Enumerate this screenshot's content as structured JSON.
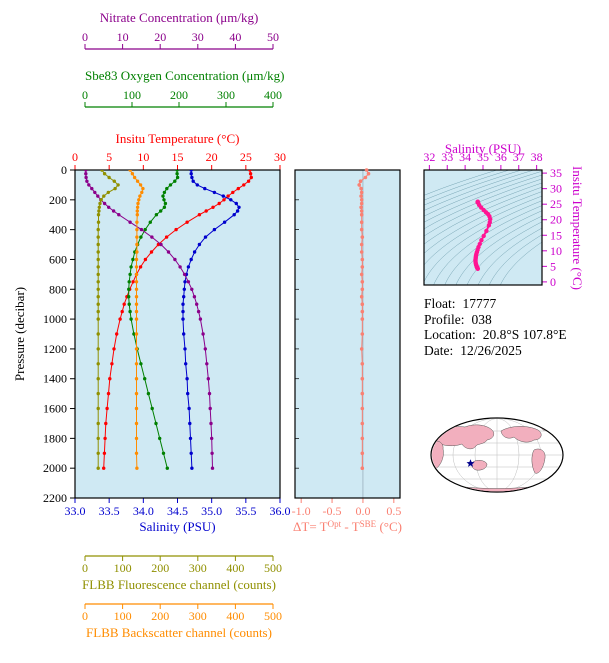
{
  "plot_background": "#cfe9f3",
  "axes": {
    "nitrate": {
      "title": "Nitrate Concentration (μm/kg)",
      "color": "#8b008b",
      "min": 0,
      "max": 50,
      "ticks": [
        "0",
        "10",
        "20",
        "30",
        "40",
        "50"
      ]
    },
    "oxygen": {
      "title": "Sbe83 Oxygen Concentration (μm/kg)",
      "color": "#008000",
      "min": 0,
      "max": 400,
      "ticks": [
        "0",
        "100",
        "200",
        "300",
        "400"
      ]
    },
    "temperature": {
      "title": "Insitu Temperature (°C)",
      "color": "#ff0000",
      "min": 0,
      "max": 30,
      "ticks": [
        "0",
        "5",
        "10",
        "15",
        "20",
        "25",
        "30"
      ]
    },
    "salinity": {
      "title": "Salinity (PSU)",
      "color": "#0000cd",
      "min": 33,
      "max": 36,
      "ticks": [
        "33.0",
        "33.5",
        "34.0",
        "34.5",
        "35.0",
        "35.5",
        "36.0"
      ]
    },
    "pressure": {
      "title": "Pressure (decibar)",
      "color": "#000000",
      "min": 0,
      "max": 2200,
      "ticks": [
        "0",
        "200",
        "400",
        "600",
        "800",
        "1000",
        "1200",
        "1400",
        "1600",
        "1800",
        "2000",
        "2200"
      ]
    },
    "fluorescence": {
      "title": "FLBB Fluorescence channel (counts)",
      "color": "#909000",
      "min": 0,
      "max": 500,
      "ticks": [
        "0",
        "100",
        "200",
        "300",
        "400",
        "500"
      ]
    },
    "backscatter": {
      "title": "FLBB Backscatter channel (counts)",
      "color": "#ff8c00",
      "min": 0,
      "max": 500,
      "ticks": [
        "0",
        "100",
        "200",
        "300",
        "400",
        "500"
      ]
    },
    "delta_t": {
      "title_prefix": "ΔT= T",
      "title_sup1": "Opt",
      "title_mid": " - T",
      "title_sup2": "SBE",
      "title_suffix": " (°C)",
      "color": "#fa8072",
      "min": -1.1,
      "max": 0.6,
      "ticks": [
        "-1.0",
        "-0.5",
        "0.0",
        "0.5"
      ]
    },
    "ts_salinity": {
      "title": "Salinity (PSU)",
      "color": "#cc00cc",
      "min": 31.7,
      "max": 38.3,
      "ticks": [
        "32",
        "33",
        "34",
        "35",
        "36",
        "37",
        "38"
      ]
    },
    "ts_temperature": {
      "title": "Insitu Temperature (°C)",
      "color": "#cc00cc",
      "min": 0,
      "max": 35,
      "ticks": [
        "0",
        "5",
        "10",
        "15",
        "20",
        "25",
        "30",
        "35"
      ]
    }
  },
  "info": {
    "rows": [
      {
        "label": "Float:",
        "value": "17777"
      },
      {
        "label": "Profile:",
        "value": "038"
      },
      {
        "label": "Location:",
        "value": "20.8°S  107.8°E"
      },
      {
        "label": "Date:",
        "value": "12/26/2025"
      }
    ]
  },
  "map": {
    "land_color": "#f2afbe",
    "marker_color": "#00008b"
  },
  "chart_data": [
    {
      "id": "profiles",
      "type": "line",
      "title": "Vertical profiles vs pressure",
      "ylabel": "Pressure (decibar)",
      "ylim": [
        0,
        2200
      ],
      "y_inverted": true,
      "grid": false,
      "pressure_levels": [
        0,
        25,
        50,
        75,
        100,
        125,
        150,
        175,
        200,
        225,
        250,
        275,
        300,
        350,
        400,
        450,
        500,
        550,
        600,
        650,
        700,
        750,
        800,
        850,
        900,
        950,
        1000,
        1100,
        1200,
        1300,
        1400,
        1500,
        1600,
        1700,
        1800,
        1900,
        2000
      ],
      "series": [
        {
          "id": "temperature",
          "name": "Insitu Temperature (°C)",
          "color": "#ff0000",
          "span": "box",
          "xlim": [
            0,
            30
          ],
          "values": [
            25.6,
            25.7,
            25.8,
            25.4,
            24.7,
            23.9,
            23.1,
            22.4,
            21.8,
            21.1,
            20.2,
            19.2,
            18.2,
            16.4,
            14.8,
            13.4,
            12.2,
            11.2,
            10.3,
            9.6,
            9.0,
            8.5,
            8.0,
            7.6,
            7.2,
            6.9,
            6.6,
            6.1,
            5.7,
            5.4,
            5.1,
            4.9,
            4.7,
            4.5,
            4.4,
            4.3,
            4.2
          ]
        },
        {
          "id": "salinity",
          "name": "Salinity (PSU)",
          "color": "#0000cd",
          "span": "box",
          "xlim": [
            33,
            36
          ],
          "values": [
            34.7,
            34.7,
            34.71,
            34.73,
            34.79,
            34.9,
            35.04,
            35.17,
            35.28,
            35.36,
            35.4,
            35.38,
            35.33,
            35.19,
            35.04,
            34.91,
            34.82,
            34.75,
            34.7,
            34.66,
            34.63,
            34.61,
            34.6,
            34.59,
            34.58,
            34.58,
            34.58,
            34.59,
            34.61,
            34.62,
            34.64,
            34.65,
            34.67,
            34.68,
            34.69,
            34.7,
            34.71
          ]
        },
        {
          "id": "oxygen",
          "name": "Sbe83 Oxygen Concentration (μm/kg)",
          "color": "#008000",
          "span": "offset",
          "xlim": [
            0,
            400
          ],
          "values": [
            196,
            196,
            197,
            191,
            182,
            174,
            169,
            166,
            168,
            171,
            169,
            161,
            152,
            139,
            128,
            119,
            112,
            106,
            102,
            98,
            96,
            94,
            93,
            93,
            94,
            96,
            98,
            104,
            111,
            119,
            127,
            135,
            143,
            151,
            159,
            167,
            175
          ]
        },
        {
          "id": "nitrate",
          "name": "Nitrate Concentration (μm/kg)",
          "color": "#8b008b",
          "span": "offset",
          "xlim": [
            0,
            50
          ],
          "values": [
            0.2,
            0.2,
            0.3,
            0.5,
            1.0,
            1.8,
            2.6,
            3.4,
            4.2,
            5.2,
            6.3,
            7.6,
            9.0,
            12.0,
            15.0,
            17.8,
            20.2,
            22.2,
            23.9,
            25.3,
            26.5,
            27.5,
            28.4,
            29.1,
            29.7,
            30.2,
            30.7,
            31.4,
            32.0,
            32.4,
            32.8,
            33.1,
            33.3,
            33.5,
            33.7,
            33.8,
            33.9
          ]
        },
        {
          "id": "fluorescence",
          "name": "FLBB Fluorescence channel (counts)",
          "color": "#909000",
          "span": "offset",
          "xlim": [
            0,
            500
          ],
          "values": [
            45,
            52,
            64,
            78,
            88,
            80,
            62,
            50,
            43,
            40,
            38,
            37,
            36,
            36,
            35,
            35,
            35,
            35,
            35,
            35,
            35,
            35,
            35,
            35,
            35,
            35,
            35,
            35,
            35,
            35,
            35,
            35,
            35,
            35,
            35,
            35,
            35
          ]
        },
        {
          "id": "backscatter",
          "name": "FLBB Backscatter channel (counts)",
          "color": "#ff8c00",
          "span": "offset",
          "xlim": [
            0,
            500
          ],
          "values": [
            120,
            126,
            132,
            140,
            148,
            154,
            151,
            146,
            143,
            141,
            140,
            139,
            139,
            138,
            138,
            138,
            138,
            138,
            137,
            137,
            137,
            137,
            137,
            137,
            137,
            137,
            137,
            137,
            137,
            137,
            137,
            137,
            137,
            137,
            137,
            137,
            138
          ]
        }
      ]
    },
    {
      "id": "delta_t",
      "type": "scatter",
      "xlabel": "ΔT= TOpt - TSBE (°C)",
      "xlim": [
        -1.1,
        0.6
      ],
      "ylabel": "Pressure (decibar)",
      "ylim": [
        0,
        2200
      ],
      "y_inverted": true,
      "color": "#fa8072",
      "pressure_levels": [
        0,
        25,
        50,
        75,
        100,
        125,
        150,
        175,
        200,
        225,
        250,
        275,
        300,
        350,
        400,
        450,
        500,
        550,
        600,
        650,
        700,
        750,
        800,
        850,
        900,
        950,
        1000,
        1100,
        1200,
        1300,
        1400,
        1500,
        1600,
        1700,
        1800,
        1900,
        2000
      ],
      "values": [
        0.06,
        0.09,
        0.04,
        -0.04,
        -0.06,
        -0.03,
        -0.02,
        -0.03,
        -0.02,
        -0.02,
        -0.03,
        -0.02,
        -0.02,
        -0.02,
        -0.02,
        -0.01,
        -0.02,
        -0.02,
        -0.01,
        -0.01,
        -0.02,
        -0.01,
        -0.01,
        -0.02,
        -0.01,
        -0.01,
        -0.01,
        -0.01,
        -0.02,
        -0.01,
        -0.01,
        -0.01,
        -0.01,
        -0.01,
        -0.01,
        -0.01,
        -0.01
      ]
    },
    {
      "id": "ts_diagram",
      "type": "scatter",
      "xlabel": "Salinity (PSU)",
      "ylabel": "Insitu Temperature (°C)",
      "xlim": [
        31.7,
        38.3
      ],
      "ylim": [
        0,
        35
      ],
      "color": "#ff1493",
      "isopycnal_contours": [
        20,
        20.5,
        21,
        21.5,
        22,
        22.5,
        23,
        23.5,
        24,
        24.5,
        25,
        25.5,
        26,
        26.5,
        27,
        27.5,
        28,
        28.5,
        29
      ],
      "points": [
        [
          34.7,
          25.6
        ],
        [
          34.7,
          25.7
        ],
        [
          34.71,
          25.8
        ],
        [
          34.73,
          25.4
        ],
        [
          34.79,
          24.7
        ],
        [
          34.9,
          23.9
        ],
        [
          35.04,
          23.1
        ],
        [
          35.17,
          22.4
        ],
        [
          35.28,
          21.8
        ],
        [
          35.36,
          21.1
        ],
        [
          35.4,
          20.2
        ],
        [
          35.38,
          19.2
        ],
        [
          35.33,
          18.2
        ],
        [
          35.19,
          16.4
        ],
        [
          35.04,
          14.8
        ],
        [
          34.91,
          13.4
        ],
        [
          34.82,
          12.2
        ],
        [
          34.75,
          11.2
        ],
        [
          34.7,
          10.3
        ],
        [
          34.66,
          9.6
        ],
        [
          34.63,
          9.0
        ],
        [
          34.61,
          8.5
        ],
        [
          34.6,
          8.0
        ],
        [
          34.59,
          7.6
        ],
        [
          34.58,
          7.2
        ],
        [
          34.58,
          6.9
        ],
        [
          34.58,
          6.6
        ],
        [
          34.59,
          6.1
        ],
        [
          34.61,
          5.7
        ],
        [
          34.62,
          5.4
        ],
        [
          34.64,
          5.1
        ],
        [
          34.65,
          4.9
        ],
        [
          34.67,
          4.7
        ],
        [
          34.68,
          4.5
        ],
        [
          34.69,
          4.4
        ],
        [
          34.7,
          4.3
        ],
        [
          34.71,
          4.2
        ]
      ]
    }
  ]
}
